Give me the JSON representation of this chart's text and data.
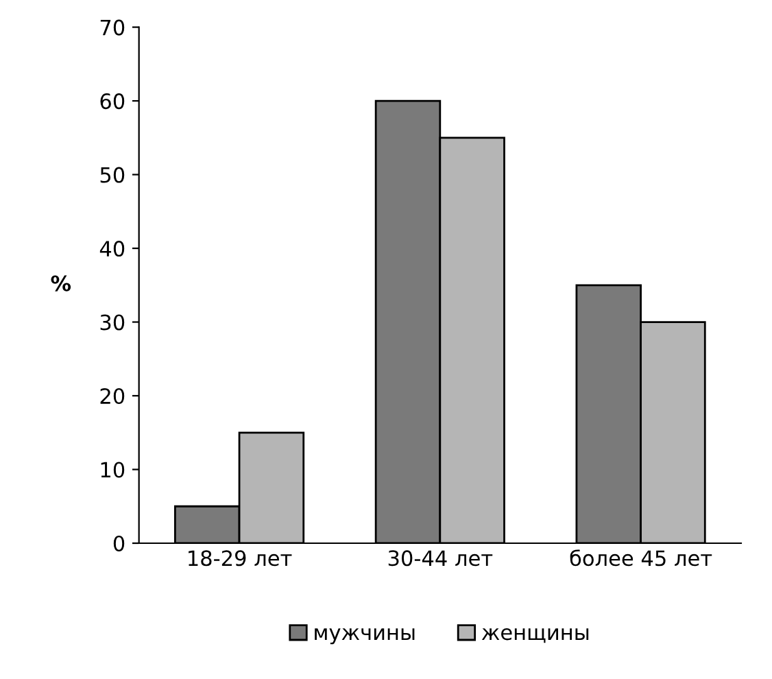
{
  "chart_data": {
    "type": "bar",
    "ylabel": "%",
    "categories": [
      "18-29 лет",
      "30-44 лет",
      "более 45 лет"
    ],
    "series": [
      {
        "name": "мужчины",
        "color": "#7a7a7a",
        "values": [
          5,
          60,
          35
        ]
      },
      {
        "name": "женщины",
        "color": "#b5b5b5",
        "values": [
          15,
          55,
          30
        ]
      }
    ],
    "ylim": [
      0,
      70
    ],
    "yticks": [
      0,
      10,
      20,
      30,
      40,
      50,
      60,
      70
    ],
    "grid": false,
    "legend": "bottom"
  }
}
